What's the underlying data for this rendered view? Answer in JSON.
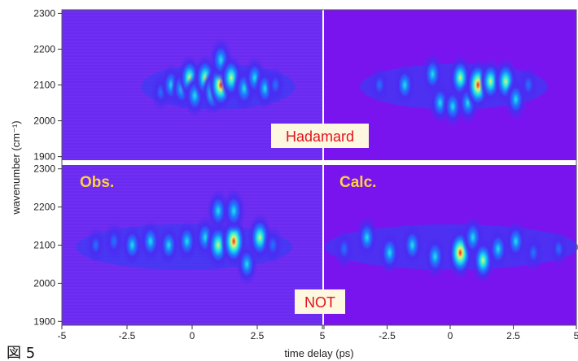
{
  "caption": "図 5",
  "chart_data": {
    "type": "heatmap",
    "title": "",
    "xlabel": "time delay (ps)",
    "ylabel": "wavenumber (cm⁻¹)",
    "xlim": [
      -5,
      5
    ],
    "ylim": [
      1890,
      2310
    ],
    "x_tick_labels": [
      "-5",
      "-2.5",
      "0",
      "2.5",
      "5"
    ],
    "y_ticks": [
      1900,
      2000,
      2100,
      2200,
      2300
    ],
    "column_labels": [
      "Obs.",
      "Calc."
    ],
    "row_labels": [
      "Hadamard",
      "NOT"
    ],
    "colormap": [
      "#7a14ee",
      "#4a2cf2",
      "#1f78ff",
      "#1ee6e6",
      "#dcf56e",
      "#ff1e1e"
    ],
    "background_color": "#7a14ee",
    "label_color": "#ffd23a",
    "gate_label_color": "#e0141e",
    "panels": [
      {
        "row": "Hadamard",
        "column": "Obs.",
        "blobs": [
          {
            "t": -1.2,
            "w": 2080,
            "v": 0.4
          },
          {
            "t": -0.8,
            "w": 2100,
            "v": 0.55
          },
          {
            "t": -0.4,
            "w": 2090,
            "v": 0.6
          },
          {
            "t": -0.1,
            "w": 2120,
            "v": 0.7
          },
          {
            "t": 0.1,
            "w": 2070,
            "v": 0.6
          },
          {
            "t": 0.5,
            "w": 2120,
            "v": 0.75
          },
          {
            "t": 0.8,
            "w": 2080,
            "v": 0.7
          },
          {
            "t": 1.1,
            "w": 2100,
            "v": 1.0
          },
          {
            "t": 1.1,
            "w": 2170,
            "v": 0.65
          },
          {
            "t": 1.5,
            "w": 2120,
            "v": 0.75
          },
          {
            "t": 2.0,
            "w": 2090,
            "v": 0.65
          },
          {
            "t": 2.4,
            "w": 2120,
            "v": 0.55
          },
          {
            "t": 2.8,
            "w": 2090,
            "v": 0.5
          },
          {
            "t": 3.2,
            "w": 2100,
            "v": 0.35
          }
        ]
      },
      {
        "row": "Hadamard",
        "column": "Calc.",
        "blobs": [
          {
            "t": -2.8,
            "w": 2100,
            "v": 0.35
          },
          {
            "t": -1.8,
            "w": 2100,
            "v": 0.5
          },
          {
            "t": -0.7,
            "w": 2130,
            "v": 0.55
          },
          {
            "t": -0.4,
            "w": 2050,
            "v": 0.55
          },
          {
            "t": 0.1,
            "w": 2040,
            "v": 0.5
          },
          {
            "t": 0.4,
            "w": 2120,
            "v": 0.7
          },
          {
            "t": 0.7,
            "w": 2050,
            "v": 0.55
          },
          {
            "t": 1.1,
            "w": 2100,
            "v": 1.0
          },
          {
            "t": 1.6,
            "w": 2110,
            "v": 0.7
          },
          {
            "t": 2.2,
            "w": 2110,
            "v": 0.75
          },
          {
            "t": 2.6,
            "w": 2060,
            "v": 0.55
          },
          {
            "t": 3.1,
            "w": 2100,
            "v": 0.4
          }
        ]
      },
      {
        "row": "NOT",
        "column": "Obs.",
        "blobs": [
          {
            "t": -3.7,
            "w": 2100,
            "v": 0.3
          },
          {
            "t": -3.0,
            "w": 2110,
            "v": 0.45
          },
          {
            "t": -2.3,
            "w": 2100,
            "v": 0.5
          },
          {
            "t": -1.6,
            "w": 2110,
            "v": 0.55
          },
          {
            "t": -0.9,
            "w": 2100,
            "v": 0.5
          },
          {
            "t": -0.2,
            "w": 2110,
            "v": 0.55
          },
          {
            "t": 0.5,
            "w": 2120,
            "v": 0.6
          },
          {
            "t": 1.0,
            "w": 2100,
            "v": 0.85
          },
          {
            "t": 1.0,
            "w": 2190,
            "v": 0.6
          },
          {
            "t": 1.6,
            "w": 2110,
            "v": 1.0
          },
          {
            "t": 1.6,
            "w": 2190,
            "v": 0.65
          },
          {
            "t": 2.1,
            "w": 2050,
            "v": 0.55
          },
          {
            "t": 2.6,
            "w": 2120,
            "v": 0.8
          },
          {
            "t": 3.1,
            "w": 2100,
            "v": 0.4
          }
        ]
      },
      {
        "row": "NOT",
        "column": "Calc.",
        "blobs": [
          {
            "t": -4.2,
            "w": 2090,
            "v": 0.45
          },
          {
            "t": -3.3,
            "w": 2120,
            "v": 0.55
          },
          {
            "t": -2.4,
            "w": 2080,
            "v": 0.6
          },
          {
            "t": -1.5,
            "w": 2100,
            "v": 0.55
          },
          {
            "t": -0.6,
            "w": 2070,
            "v": 0.6
          },
          {
            "t": 0.4,
            "w": 2080,
            "v": 1.0
          },
          {
            "t": 0.9,
            "w": 2120,
            "v": 0.6
          },
          {
            "t": 1.3,
            "w": 2060,
            "v": 0.7
          },
          {
            "t": 1.9,
            "w": 2090,
            "v": 0.55
          },
          {
            "t": 2.6,
            "w": 2110,
            "v": 0.5
          },
          {
            "t": 3.3,
            "w": 2080,
            "v": 0.4
          },
          {
            "t": 4.3,
            "w": 2090,
            "v": 0.3
          }
        ]
      }
    ]
  }
}
